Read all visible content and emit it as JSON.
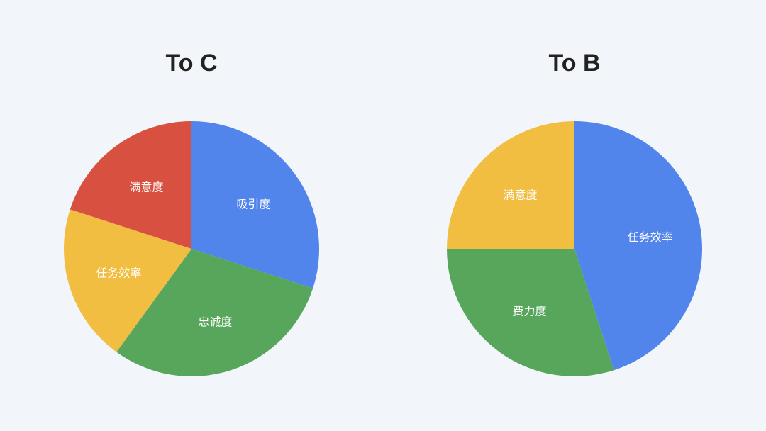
{
  "chart_data": [
    {
      "type": "pie",
      "title": "To C",
      "start": "top",
      "direction": "clockwise",
      "slices": [
        {
          "label": "吸引度",
          "value": 30,
          "color": "#5285ec"
        },
        {
          "label": "忠诚度",
          "value": 30,
          "color": "#58a65c"
        },
        {
          "label": "任务效率",
          "value": 20,
          "color": "#f1be42"
        },
        {
          "label": "满意度",
          "value": 20,
          "color": "#d85140"
        }
      ]
    },
    {
      "type": "pie",
      "title": "To B",
      "start": "top",
      "direction": "clockwise",
      "slices": [
        {
          "label": "任务效率",
          "value": 45,
          "color": "#5285ec"
        },
        {
          "label": "费力度",
          "value": 30,
          "color": "#58a65c"
        },
        {
          "label": "满意度",
          "value": 25,
          "color": "#f1be42"
        }
      ]
    }
  ]
}
